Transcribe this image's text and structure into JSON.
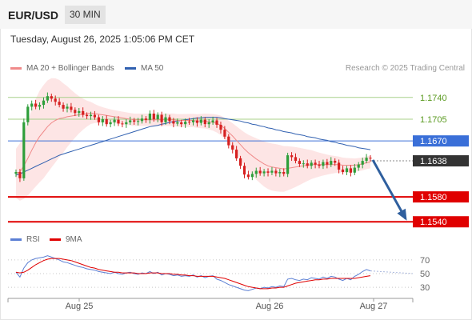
{
  "header": {
    "pair": "EUR/USD",
    "timeframe": "30 MIN"
  },
  "datetime": "Tuesday, August 26, 2025 1:05:06 PM CET",
  "legend": {
    "ma20_label": "MA 20 + Bollinger Bands",
    "ma50_label": "MA 50",
    "credit": "Research © 2025 Trading Central",
    "rsi_label": "RSI",
    "rsi_ma_label": "9MA"
  },
  "colors": {
    "up": "#2e9e3a",
    "down": "#d62020",
    "ma20": "#f08a8a",
    "ma50": "#3060b0",
    "band": "#fde2e2",
    "resistance": "#a8d08a",
    "pivot": "#3a6fd8",
    "support": "#e00000",
    "arrow": "#2f5f9e",
    "rsi": "#5b7fd4",
    "rsi_ma": "#e00000",
    "current": "#333333"
  },
  "chart_data": [
    {
      "type": "candlestick",
      "instrument": "EUR/USD",
      "ylim": [
        1.153,
        1.1768
      ],
      "x_labels": [
        "Aug 25",
        "Aug 26",
        "Aug 27"
      ],
      "levels": [
        {
          "name": "resistance-2",
          "value": 1.174,
          "label": "1.1740",
          "kind": "resistance"
        },
        {
          "name": "resistance-1",
          "value": 1.1705,
          "label": "1.1705",
          "kind": "resistance"
        },
        {
          "name": "pivot",
          "value": 1.167,
          "label": "1.1670",
          "kind": "pivot"
        },
        {
          "name": "current",
          "value": 1.1638,
          "label": "1.1638",
          "kind": "current"
        },
        {
          "name": "support-1",
          "value": 1.158,
          "label": "1.1580",
          "kind": "support"
        },
        {
          "name": "support-2",
          "value": 1.154,
          "label": "1.1540",
          "kind": "support"
        }
      ],
      "closes": [
        1.162,
        1.161,
        1.17,
        1.1725,
        1.173,
        1.1725,
        1.1728,
        1.1735,
        1.1742,
        1.1738,
        1.1733,
        1.1728,
        1.1722,
        1.1725,
        1.172,
        1.1715,
        1.1718,
        1.1712,
        1.171,
        1.1712,
        1.1708,
        1.17,
        1.1705,
        1.1697,
        1.17,
        1.1704,
        1.1698,
        1.1697,
        1.17,
        1.1703,
        1.1701,
        1.1702,
        1.1706,
        1.1704,
        1.1714,
        1.1705,
        1.1712,
        1.17,
        1.1708,
        1.1702,
        1.1698,
        1.17,
        1.1697,
        1.1701,
        1.17,
        1.1703,
        1.1699,
        1.1704,
        1.1697,
        1.17,
        1.1703,
        1.1696,
        1.1688,
        1.1677,
        1.1663,
        1.1656,
        1.1642,
        1.163,
        1.1616,
        1.1612,
        1.1617,
        1.1622,
        1.1618,
        1.1621,
        1.1619,
        1.1622,
        1.1618,
        1.162,
        1.1617,
        1.1647,
        1.1644,
        1.1638,
        1.1633,
        1.1634,
        1.163,
        1.1635,
        1.1632,
        1.163,
        1.1636,
        1.1632,
        1.1638,
        1.1635,
        1.1624,
        1.162,
        1.1626,
        1.1619,
        1.1627,
        1.1632,
        1.1638,
        1.1643,
        1.1642
      ],
      "ma20": [
        1.1618,
        1.162,
        1.163,
        1.1642,
        1.1655,
        1.1667,
        1.1677,
        1.1685,
        1.1693,
        1.1699,
        1.1703,
        1.1706,
        1.1707,
        1.1709,
        1.171,
        1.1711,
        1.1712,
        1.1713,
        1.1714,
        1.1715,
        1.1714,
        1.1713,
        1.1712,
        1.1711,
        1.171,
        1.1709,
        1.1708,
        1.1707,
        1.1706,
        1.1705,
        1.1704,
        1.1704,
        1.1704,
        1.1704,
        1.1704,
        1.1704,
        1.1704,
        1.1704,
        1.1704,
        1.1704,
        1.1704,
        1.1703,
        1.1703,
        1.1703,
        1.1703,
        1.1703,
        1.1702,
        1.1702,
        1.1702,
        1.1701,
        1.17,
        1.1698,
        1.1695,
        1.169,
        1.1684,
        1.1678,
        1.1671,
        1.1664,
        1.1657,
        1.1651,
        1.1646,
        1.1641,
        1.1637,
        1.1633,
        1.163,
        1.1628,
        1.1627,
        1.1626,
        1.1625,
        1.1626,
        1.1627,
        1.1628,
        1.1629,
        1.163,
        1.1631,
        1.1632,
        1.1632,
        1.1632,
        1.1632,
        1.1632,
        1.1632,
        1.1632,
        1.1632,
        1.1631,
        1.1631,
        1.1631,
        1.1631,
        1.1632,
        1.1633,
        1.1635,
        1.1636
      ],
      "ma50": [
        1.1615,
        1.1617,
        1.162,
        1.1623,
        1.1626,
        1.1629,
        1.1632,
        1.1635,
        1.1638,
        1.1641,
        1.1644,
        1.1647,
        1.1649,
        1.1651,
        1.1653,
        1.1655,
        1.1657,
        1.1659,
        1.1661,
        1.1663,
        1.1665,
        1.1667,
        1.1669,
        1.1671,
        1.1673,
        1.1675,
        1.1677,
        1.1679,
        1.1681,
        1.1683,
        1.1685,
        1.1687,
        1.1689,
        1.1691,
        1.1693,
        1.1694,
        1.1695,
        1.1697,
        1.1698,
        1.17,
        1.1701,
        1.1702,
        1.1703,
        1.1704,
        1.1705,
        1.1706,
        1.1707,
        1.1707,
        1.1708,
        1.1708,
        1.1708,
        1.1708,
        1.1707,
        1.1706,
        1.1705,
        1.1704,
        1.1703,
        1.1702,
        1.17,
        1.1699,
        1.1697,
        1.1696,
        1.1694,
        1.1693,
        1.1691,
        1.169,
        1.1688,
        1.1687,
        1.1685,
        1.1684,
        1.1683,
        1.1681,
        1.168,
        1.1679,
        1.1677,
        1.1676,
        1.1675,
        1.1673,
        1.1672,
        1.1671,
        1.1669,
        1.1668,
        1.1666,
        1.1665,
        1.1663,
        1.1662,
        1.1661,
        1.1659,
        1.1658,
        1.1657,
        1.1656
      ],
      "forecast_arrow": {
        "from": 1.1642,
        "to": 1.154
      }
    },
    {
      "type": "line",
      "name": "RSI",
      "ylim": [
        15,
        85
      ],
      "ticks": [
        70,
        50,
        30
      ],
      "series": [
        {
          "name": "RSI",
          "values": [
            52,
            45,
            58,
            66,
            70,
            72,
            73,
            74,
            76,
            74,
            72,
            70,
            67,
            66,
            64,
            62,
            60,
            59,
            57,
            56,
            55,
            53,
            52,
            51,
            50,
            52,
            50,
            49,
            51,
            52,
            50,
            49,
            51,
            50,
            53,
            50,
            52,
            48,
            50,
            49,
            47,
            48,
            46,
            47,
            46,
            48,
            45,
            47,
            44,
            46,
            47,
            42,
            40,
            37,
            34,
            32,
            30,
            28,
            26,
            25,
            27,
            29,
            28,
            30,
            29,
            31,
            30,
            32,
            31,
            42,
            43,
            41,
            40,
            42,
            41,
            44,
            43,
            42,
            45,
            43,
            46,
            45,
            42,
            40,
            43,
            41,
            46,
            49,
            53,
            56,
            54
          ]
        },
        {
          "name": "9MA",
          "values": [
            52,
            51,
            52,
            55,
            59,
            63,
            66,
            69,
            71,
            72,
            72,
            72,
            71,
            70,
            69,
            67,
            65,
            63,
            61,
            59,
            58,
            56,
            55,
            54,
            53,
            52,
            52,
            51,
            51,
            51,
            51,
            50,
            50,
            50,
            51,
            51,
            51,
            50,
            50,
            50,
            49,
            49,
            48,
            48,
            47,
            47,
            46,
            46,
            46,
            46,
            46,
            45,
            44,
            43,
            41,
            39,
            37,
            35,
            33,
            31,
            30,
            29,
            28,
            28,
            28,
            29,
            29,
            30,
            30,
            32,
            34,
            36,
            37,
            38,
            39,
            40,
            41,
            41,
            42,
            42,
            43,
            43,
            43,
            43,
            43,
            43,
            43,
            44,
            45,
            46,
            47
          ]
        }
      ]
    }
  ]
}
